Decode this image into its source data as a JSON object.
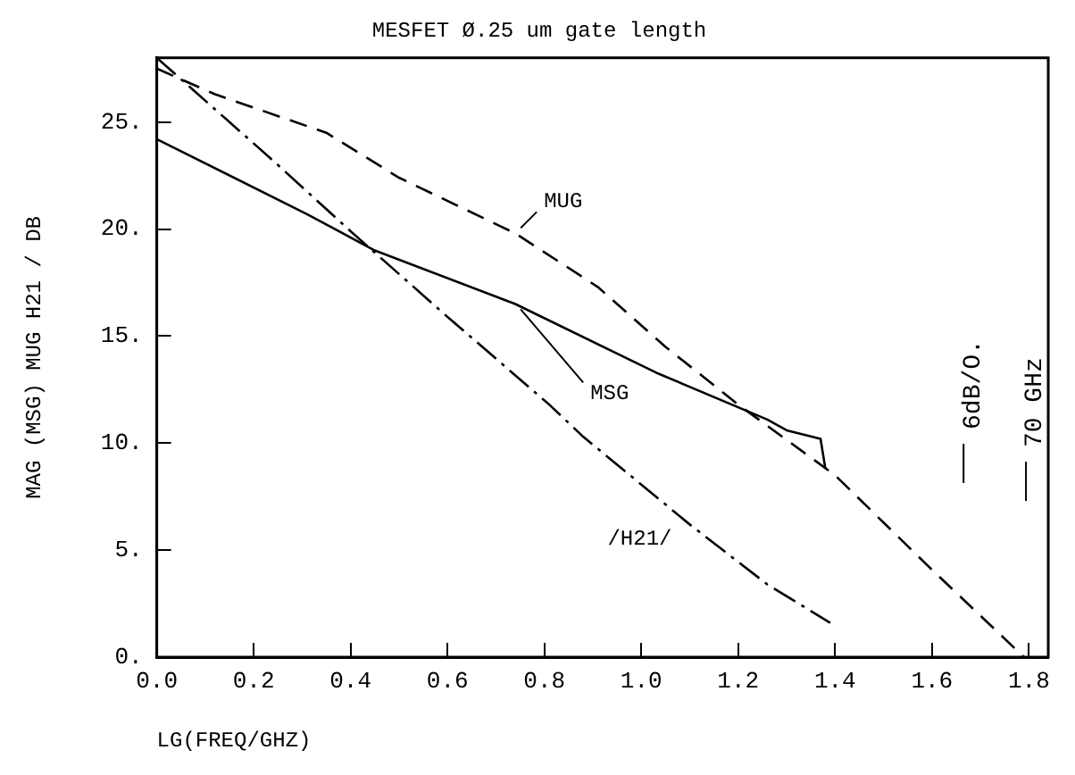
{
  "chart_data": {
    "type": "line",
    "title": "MESFET Ø.25 um gate length",
    "xlabel": "LG(FREQ/GHZ)",
    "ylabel": "MAG (MSG) MUG H21 / DB",
    "xlim": [
      0,
      1.84
    ],
    "xticks": [
      {
        "value": 0,
        "label": "0.0"
      },
      {
        "value": 0.2,
        "label": "0.2"
      },
      {
        "value": 0.4,
        "label": "0.4"
      },
      {
        "value": 0.6,
        "label": "0.6"
      },
      {
        "value": 0.8,
        "label": "0.8"
      },
      {
        "value": 1,
        "label": "1.0"
      },
      {
        "value": 1.2,
        "label": "1.2"
      },
      {
        "value": 1.4,
        "label": "1.4"
      },
      {
        "value": 1.6,
        "label": "1.6"
      },
      {
        "value": 1.8,
        "label": "1.8"
      }
    ],
    "ylim": [
      0,
      28
    ],
    "yticks": [
      {
        "value": 0,
        "label": "0."
      },
      {
        "value": 5,
        "label": "5."
      },
      {
        "value": 10,
        "label": "10."
      },
      {
        "value": 15,
        "label": "15."
      },
      {
        "value": 20,
        "label": "20."
      },
      {
        "value": 25,
        "label": "25."
      }
    ],
    "grid": false,
    "legend": false,
    "marker": "none",
    "series": [
      {
        "name": "MUG",
        "color": "#000000",
        "line_style": "dashed",
        "x": [
          0,
          0.12,
          0.35,
          0.5,
          0.74,
          0.91,
          1.05,
          1.2,
          1.4,
          1.59,
          1.79
        ],
        "values": [
          27.5,
          26.3,
          24.5,
          22.4,
          19.8,
          17.3,
          14.5,
          11.8,
          8.5,
          4.3,
          0
        ]
      },
      {
        "name": "MSG",
        "color": "#000000",
        "line_style": "solid",
        "x": [
          0,
          0.31,
          0.45,
          0.74,
          1.03,
          1.26,
          1.3,
          1.37,
          1.38
        ],
        "values": [
          24.2,
          20.7,
          19,
          16.5,
          13.3,
          11.1,
          10.6,
          10.2,
          8.8
        ]
      },
      {
        "name": "/H21/",
        "color": "#000000",
        "line_style": "dashdot",
        "x": [
          0,
          0.24,
          0.4,
          0.6,
          0.81,
          0.88,
          1.1,
          1.26,
          1.39
        ],
        "values": [
          28,
          23.2,
          19.9,
          15.9,
          11.8,
          10.3,
          6.2,
          3.4,
          1.6
        ]
      }
    ],
    "annotations": [
      "6dB/O.",
      "70 GHz"
    ]
  }
}
